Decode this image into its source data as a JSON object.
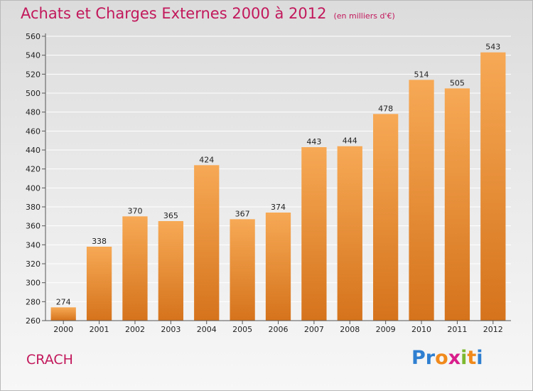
{
  "title": "Achats et Charges Externes 2000 à 2012",
  "unit_note": "(en milliers d'€)",
  "city": "CRACH",
  "brand": {
    "letters": [
      "P",
      "r",
      "o",
      "x",
      "i",
      "t",
      "i"
    ],
    "colors": [
      "#2e7fd1",
      "#2e7fd1",
      "#f08a1c",
      "#d91e8b",
      "#7cb82f",
      "#f08a1c",
      "#2e7fd1"
    ]
  },
  "colors": {
    "bar_top": "#f7a955",
    "bar_bottom": "#d5731c",
    "title": "#c2185b",
    "grid": "#ffffff"
  },
  "chart_data": {
    "type": "bar",
    "categories": [
      "2000",
      "2001",
      "2002",
      "2003",
      "2004",
      "2005",
      "2006",
      "2007",
      "2008",
      "2009",
      "2010",
      "2011",
      "2012"
    ],
    "values": [
      274,
      338,
      370,
      365,
      424,
      367,
      374,
      443,
      444,
      478,
      514,
      505,
      543
    ],
    "ylim": [
      260,
      560
    ],
    "yticks": [
      260,
      280,
      300,
      320,
      340,
      360,
      380,
      400,
      420,
      440,
      460,
      480,
      500,
      520,
      540,
      560
    ],
    "grid": true,
    "data_labels": true
  }
}
